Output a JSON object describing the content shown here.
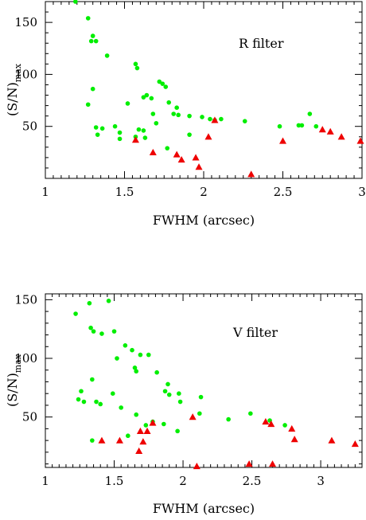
{
  "chart_data": [
    {
      "type": "scatter",
      "annotation": "R filter",
      "xlabel": "FWHM (arcsec)",
      "ylabel_main": "(S/N)",
      "ylabel_sub": "max",
      "xlim": [
        1,
        3
      ],
      "ylim": [
        0,
        170
      ],
      "xticks": [
        1,
        1.5,
        2,
        2.5,
        3
      ],
      "xtick_labels": [
        "1",
        "1.5",
        "2",
        "2.5",
        "3"
      ],
      "yticks": [
        50,
        100,
        150
      ],
      "ytick_labels": [
        "50",
        "100",
        "150"
      ],
      "series": [
        {
          "marker": "circle",
          "color": "#00ee00",
          "points": [
            [
              1.19,
              170
            ],
            [
              1.27,
              154
            ],
            [
              1.3,
              137
            ],
            [
              1.29,
              132
            ],
            [
              1.32,
              132
            ],
            [
              1.39,
              118
            ],
            [
              1.27,
              71
            ],
            [
              1.3,
              86
            ],
            [
              1.32,
              49
            ],
            [
              1.36,
              48
            ],
            [
              1.33,
              42
            ],
            [
              1.44,
              50
            ],
            [
              1.47,
              44
            ],
            [
              1.47,
              38
            ],
            [
              1.52,
              72
            ],
            [
              1.57,
              110
            ],
            [
              1.58,
              106
            ],
            [
              1.57,
              40
            ],
            [
              1.59,
              47
            ],
            [
              1.62,
              46
            ],
            [
              1.63,
              39
            ],
            [
              1.62,
              78
            ],
            [
              1.64,
              80
            ],
            [
              1.67,
              77
            ],
            [
              1.68,
              62
            ],
            [
              1.7,
              53
            ],
            [
              1.72,
              93
            ],
            [
              1.74,
              91
            ],
            [
              1.76,
              88
            ],
            [
              1.78,
              73
            ],
            [
              1.77,
              29
            ],
            [
              1.81,
              62
            ],
            [
              1.83,
              68
            ],
            [
              1.84,
              61
            ],
            [
              1.91,
              42
            ],
            [
              1.91,
              60
            ],
            [
              1.99,
              59
            ],
            [
              2.04,
              57
            ],
            [
              2.07,
              56
            ],
            [
              2.11,
              57
            ],
            [
              2.26,
              55
            ],
            [
              2.48,
              50
            ],
            [
              2.6,
              51
            ],
            [
              2.62,
              51
            ],
            [
              2.67,
              62
            ],
            [
              2.71,
              50
            ]
          ]
        },
        {
          "marker": "triangle",
          "color": "#ee0000",
          "points": [
            [
              1.57,
              37
            ],
            [
              1.68,
              25
            ],
            [
              1.83,
              23
            ],
            [
              1.86,
              18
            ],
            [
              1.95,
              20
            ],
            [
              1.97,
              11
            ],
            [
              2.03,
              40
            ],
            [
              2.07,
              56
            ],
            [
              2.3,
              4
            ],
            [
              2.5,
              36
            ],
            [
              2.75,
              47
            ],
            [
              2.8,
              45
            ],
            [
              2.87,
              40
            ],
            [
              2.99,
              36
            ]
          ]
        }
      ]
    },
    {
      "type": "scatter",
      "annotation": "V filter",
      "xlabel": "FWHM (arcsec)",
      "ylabel_main": "(S/N)",
      "ylabel_sub": "max",
      "xlim": [
        1,
        3.3
      ],
      "ylim": [
        7,
        155
      ],
      "xticks": [
        1,
        1.5,
        2,
        2.5,
        3
      ],
      "xtick_labels": [
        "1",
        "1.5",
        "2",
        "2.5",
        "3"
      ],
      "yticks": [
        50,
        100,
        150
      ],
      "ytick_labels": [
        "50",
        "100",
        "150"
      ],
      "series": [
        {
          "marker": "circle",
          "color": "#00ee00",
          "points": [
            [
              1.22,
              138
            ],
            [
              1.32,
              147
            ],
            [
              1.33,
              126
            ],
            [
              1.35,
              123
            ],
            [
              1.41,
              121
            ],
            [
              1.46,
              149
            ],
            [
              1.5,
              123
            ],
            [
              1.52,
              100
            ],
            [
              1.58,
              111
            ],
            [
              1.63,
              107
            ],
            [
              1.65,
              92
            ],
            [
              1.66,
              89
            ],
            [
              1.69,
              103
            ],
            [
              1.75,
              103
            ],
            [
              1.81,
              88
            ],
            [
              1.87,
              72
            ],
            [
              1.89,
              78
            ],
            [
              1.9,
              69
            ],
            [
              1.97,
              70
            ],
            [
              1.98,
              63
            ],
            [
              1.96,
              38
            ],
            [
              2.13,
              67
            ],
            [
              2.12,
              53
            ],
            [
              1.24,
              65
            ],
            [
              1.26,
              72
            ],
            [
              1.28,
              63
            ],
            [
              1.34,
              82
            ],
            [
              1.37,
              63
            ],
            [
              1.4,
              61
            ],
            [
              1.49,
              70
            ],
            [
              1.55,
              58
            ],
            [
              1.6,
              34
            ],
            [
              1.34,
              30
            ],
            [
              1.66,
              52
            ],
            [
              1.73,
              43
            ],
            [
              1.78,
              46
            ],
            [
              1.86,
              44
            ],
            [
              2.33,
              48
            ],
            [
              2.49,
              53
            ],
            [
              2.63,
              47
            ],
            [
              2.74,
              43
            ]
          ]
        },
        {
          "marker": "triangle",
          "color": "#ee0000",
          "points": [
            [
              1.41,
              30
            ],
            [
              1.54,
              30
            ],
            [
              1.68,
              21
            ],
            [
              1.69,
              38
            ],
            [
              1.71,
              29
            ],
            [
              1.74,
              38
            ],
            [
              1.78,
              45
            ],
            [
              2.07,
              50
            ],
            [
              2.1,
              8
            ],
            [
              2.48,
              10
            ],
            [
              2.6,
              46
            ],
            [
              2.64,
              44
            ],
            [
              2.65,
              10
            ],
            [
              2.79,
              40
            ],
            [
              2.81,
              31
            ],
            [
              3.08,
              30
            ],
            [
              3.25,
              27
            ]
          ]
        }
      ]
    }
  ]
}
